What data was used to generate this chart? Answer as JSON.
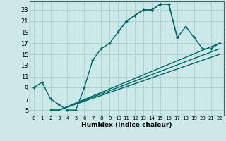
{
  "xlabel": "Humidex (Indice chaleur)",
  "bg_color": "#cce8e8",
  "grid_color": "#aad4d4",
  "line_color": "#006666",
  "xlim": [
    -0.5,
    22.5
  ],
  "ylim": [
    4,
    24.5
  ],
  "xticks": [
    0,
    1,
    2,
    3,
    4,
    5,
    6,
    7,
    8,
    9,
    10,
    11,
    12,
    13,
    14,
    15,
    16,
    17,
    18,
    19,
    20,
    21,
    22
  ],
  "yticks": [
    5,
    7,
    9,
    11,
    13,
    15,
    17,
    19,
    21,
    23
  ],
  "curve1_x": [
    0,
    1,
    2,
    3,
    4,
    5,
    6,
    7,
    8,
    9,
    10,
    11,
    12,
    13,
    14,
    15,
    16,
    17,
    18,
    19,
    20,
    21,
    22
  ],
  "curve1_y": [
    9,
    10,
    7,
    6,
    5,
    5,
    9,
    14,
    16,
    17,
    19,
    21,
    22,
    23,
    23,
    24,
    24,
    18,
    20,
    18,
    16,
    16,
    17
  ],
  "curve_back_x": [
    17,
    16,
    15,
    14,
    13,
    12,
    11,
    10
  ],
  "curve_back_y": [
    18,
    24,
    24,
    23,
    23,
    22,
    21,
    19
  ],
  "curve2_x": [
    2,
    3,
    22
  ],
  "curve2_y": [
    5,
    5,
    16
  ],
  "curve3_x": [
    2,
    3,
    22
  ],
  "curve3_y": [
    5,
    5,
    15
  ],
  "curve4_x": [
    3,
    22
  ],
  "curve4_y": [
    5,
    17
  ],
  "marker": "D",
  "marker_x": [
    0,
    1,
    2,
    3,
    4,
    5,
    6,
    7,
    8,
    9,
    10,
    11,
    12,
    13,
    14,
    15,
    16,
    17,
    18,
    19,
    20,
    21,
    22
  ],
  "marker_y": [
    9,
    10,
    7,
    6,
    5,
    5,
    9,
    14,
    16,
    17,
    19,
    21,
    22,
    23,
    23,
    24,
    24,
    18,
    20,
    18,
    16,
    16,
    17
  ]
}
